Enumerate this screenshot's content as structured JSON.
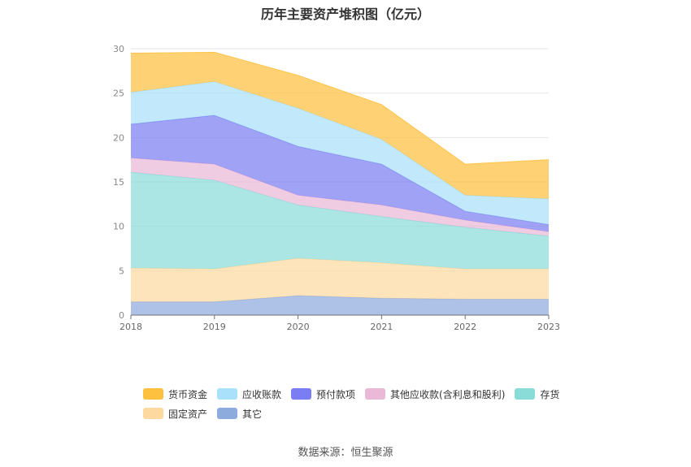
{
  "chart_data": {
    "type": "area",
    "stacked": true,
    "title": "历年主要资产堆积图（亿元）",
    "x": [
      "2018",
      "2019",
      "2020",
      "2021",
      "2022",
      "2023"
    ],
    "ylim": [
      0,
      30
    ],
    "yticks": [
      "0",
      "5",
      "10",
      "15",
      "20",
      "25",
      "30"
    ],
    "grid": true,
    "legend_position": "bottom",
    "series": [
      {
        "name": "其它",
        "color": "#8eabdd",
        "values": [
          1.5,
          1.5,
          2.2,
          1.9,
          1.8,
          1.8
        ]
      },
      {
        "name": "固定资产",
        "color": "#fdd9a0",
        "values": [
          3.8,
          3.7,
          4.2,
          4.0,
          3.4,
          3.4
        ]
      },
      {
        "name": "存货",
        "color": "#8adcd9",
        "values": [
          10.8,
          10.0,
          6.0,
          5.2,
          4.7,
          3.7
        ]
      },
      {
        "name": "其他应收款(含利息和股利)",
        "color": "#eab9d8",
        "values": [
          1.6,
          1.8,
          1.1,
          1.3,
          0.8,
          0.5
        ]
      },
      {
        "name": "预付款项",
        "color": "#7b7ef3",
        "values": [
          3.8,
          5.5,
          5.5,
          4.6,
          1.0,
          0.8
        ]
      },
      {
        "name": "应收账款",
        "color": "#a9e0fa",
        "values": [
          3.6,
          3.8,
          4.3,
          2.8,
          1.8,
          2.9
        ]
      },
      {
        "name": "货币资金",
        "color": "#fdc13f",
        "values": [
          4.4,
          3.3,
          3.7,
          3.9,
          3.5,
          4.4
        ]
      }
    ]
  },
  "legend": {
    "row1": [
      {
        "label": "货币资金",
        "color": "#fdc13f"
      },
      {
        "label": "应收账款",
        "color": "#a9e0fa"
      },
      {
        "label": "预付款项",
        "color": "#7b7ef3"
      },
      {
        "label": "其他应收款(含利息和股利)",
        "color": "#eab9d8"
      },
      {
        "label": "存货",
        "color": "#8adcd9"
      }
    ],
    "row2": [
      {
        "label": "固定资产",
        "color": "#fdd9a0"
      },
      {
        "label": "其它",
        "color": "#8eabdd"
      }
    ]
  },
  "source": "数据来源：恒生聚源"
}
